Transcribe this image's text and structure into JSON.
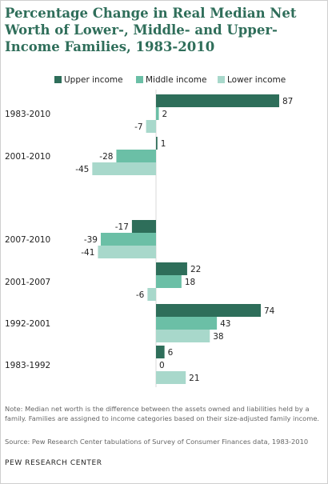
{
  "chart_data": {
    "type": "bar",
    "orientation": "horizontal",
    "title": "Percentage Change in Real Median Net Worth of Lower-, Middle- and Upper-Income Families, 1983-2010",
    "categories": [
      "1983-2010",
      "2001-2010",
      "2007-2010",
      "2001-2007",
      "1992-2001",
      "1983-1992"
    ],
    "series": [
      {
        "name": "Upper income",
        "values": [
          87,
          1,
          -17,
          22,
          74,
          6
        ],
        "color": "#2e6e5a"
      },
      {
        "name": "Middle income",
        "values": [
          2,
          -28,
          -39,
          18,
          43,
          0
        ],
        "color": "#6bbfa6"
      },
      {
        "name": "Lower income",
        "values": [
          -7,
          -45,
          -41,
          -6,
          38,
          21
        ],
        "color": "#a8d8cb"
      }
    ],
    "xlim": [
      -50,
      90
    ],
    "grid": false,
    "legend": "top"
  },
  "footer": {
    "note": "Note: Median net worth is the difference between the assets owned and liabilities held by a family. Families are assigned to income categories based on their size-adjusted family income.",
    "source": "Source: Pew Research Center tabulations of Survey of Consumer Finances data, 1983-2010",
    "org": "PEW RESEARCH CENTER"
  }
}
